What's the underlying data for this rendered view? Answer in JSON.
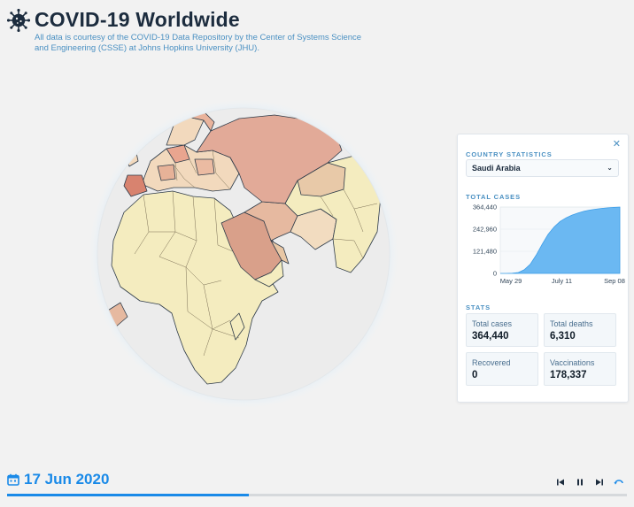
{
  "header": {
    "title": "COVID-19 Worldwide",
    "subtitle": "All data is courtesy of the COVID-19 Data Repository by the Center of Systems Science and Engineering (CSSE) at Johns Hopkins University (JHU)."
  },
  "panel": {
    "title": "COUNTRY STATISTICS",
    "close_icon": "close-icon",
    "selected_country": "Saudi Arabia",
    "total_cases_label": "TOTAL CASES",
    "stats_label": "STATS",
    "stats": [
      {
        "label": "Total cases",
        "value": "364,440"
      },
      {
        "label": "Total deaths",
        "value": "6,310"
      },
      {
        "label": "Recovered",
        "value": "0"
      },
      {
        "label": "Vaccinations",
        "value": "178,337"
      }
    ]
  },
  "chart_data": {
    "type": "area",
    "title": "TOTAL CASES",
    "y_ticks": [
      "364,440",
      "242,960",
      "121,480",
      "0"
    ],
    "x_ticks": [
      "May 29",
      "July 11",
      "Sep 08"
    ],
    "ylim": [
      0,
      364440
    ],
    "series": [
      {
        "name": "Total cases",
        "x": [
          0,
          5,
          10,
          15,
          20,
          25,
          30,
          35,
          40,
          45,
          50,
          55,
          60,
          65,
          70,
          75,
          80,
          85,
          90,
          95,
          100
        ],
        "values": [
          0,
          0,
          1000,
          5000,
          20000,
          50000,
          100000,
          160000,
          215000,
          255000,
          285000,
          305000,
          320000,
          332000,
          341000,
          348000,
          353000,
          357000,
          360000,
          362500,
          364440
        ]
      }
    ],
    "color": "#6bb8f2"
  },
  "footer": {
    "date": "17 Jun 2020",
    "progress": 0.39
  },
  "colors": {
    "accent": "#1a8ae8",
    "label": "#4a90c2"
  }
}
